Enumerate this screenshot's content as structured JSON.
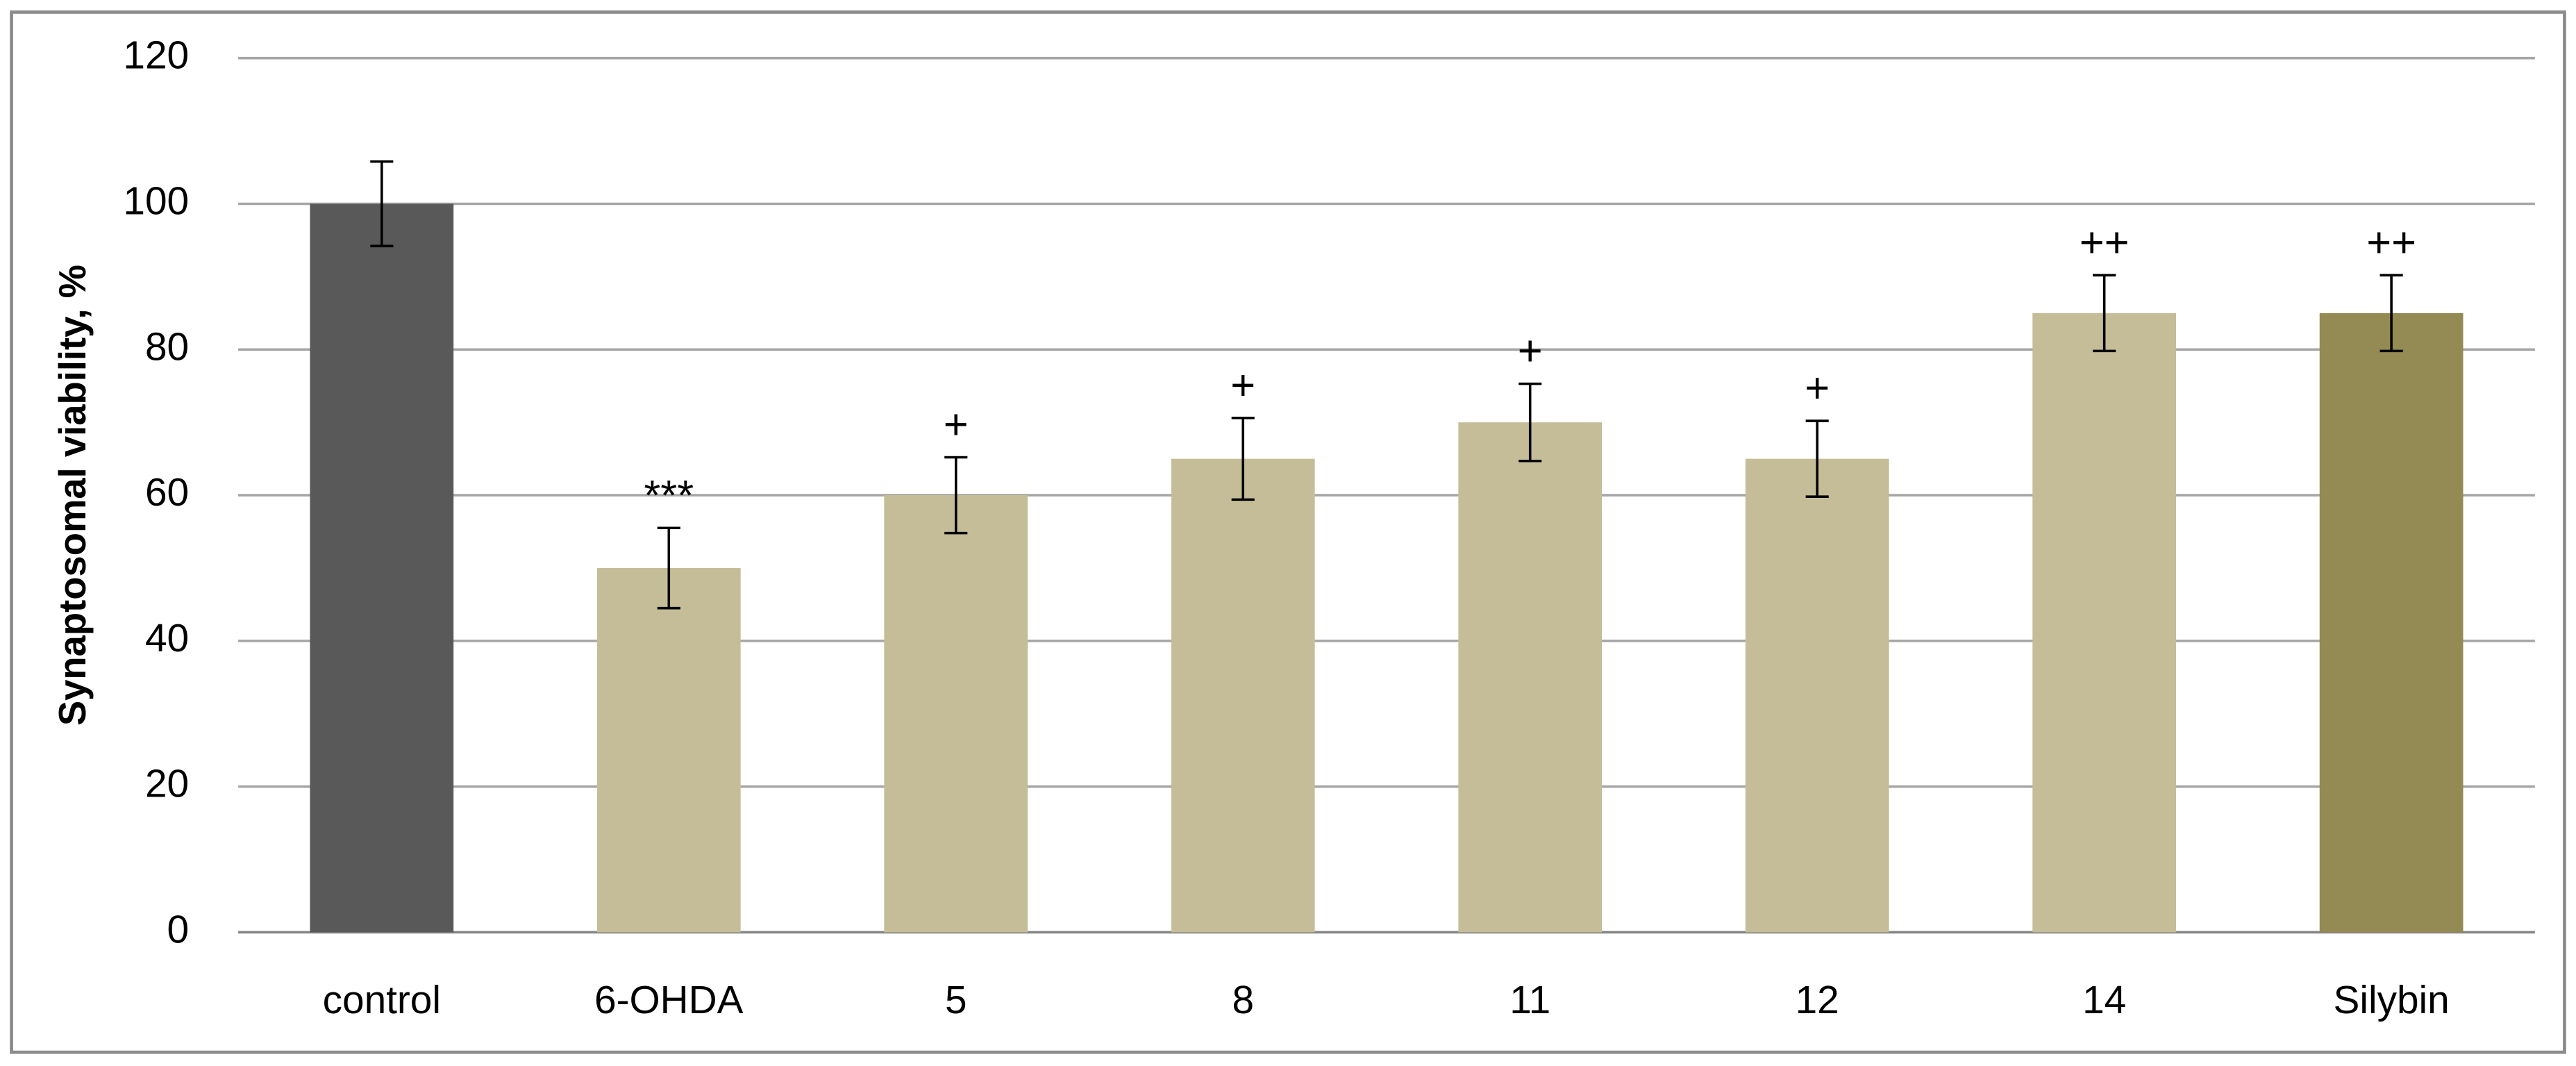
{
  "chart_data": {
    "type": "bar",
    "y_label": "Synaptosomal viability, %",
    "categories": [
      "control",
      "6-OHDA",
      "5",
      "8",
      "11",
      "12",
      "14",
      "Silybin"
    ],
    "values": [
      100,
      50,
      60,
      65,
      70,
      65,
      85,
      85
    ],
    "errors": [
      5.8,
      5.5,
      5.2,
      5.6,
      5.3,
      5.2,
      5.2,
      5.2
    ],
    "annotations": [
      null,
      "***",
      "+",
      "+",
      "+",
      "+",
      "++",
      "++"
    ],
    "colors": [
      "#595959",
      "#c4bd97",
      "#c4bd97",
      "#c4bd97",
      "#c4bd97",
      "#c4bd97",
      "#c4bd97",
      "#948a54"
    ],
    "ylim": [
      0,
      120
    ],
    "yticks": [
      0,
      20,
      40,
      60,
      80,
      100,
      120
    ],
    "grid": true
  }
}
